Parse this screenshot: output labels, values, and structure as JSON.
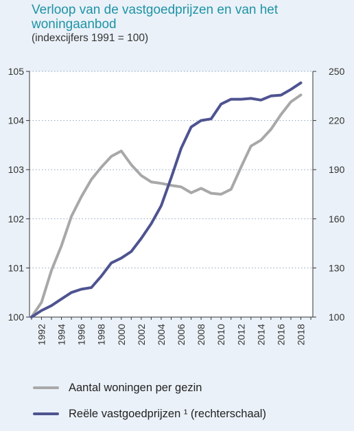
{
  "header": {
    "title": "Verloop van de vastgoedprijzen en van het woningaanbod",
    "subtitle": "(indexcijfers 1991 = 100)"
  },
  "chart_data": {
    "type": "line",
    "grid": true,
    "legend_position": "bottom-left",
    "xlim": [
      1990.8,
      2019.2
    ],
    "x_ticks": [
      1992,
      1994,
      1996,
      1998,
      2000,
      2002,
      2004,
      2006,
      2008,
      2010,
      2012,
      2014,
      2016,
      2018
    ],
    "y_left": {
      "ylim": [
        100,
        105
      ],
      "ticks": [
        100,
        101,
        102,
        103,
        104,
        105
      ]
    },
    "y_right": {
      "ylim": [
        100,
        250
      ],
      "ticks": [
        100,
        130,
        160,
        190,
        220,
        250
      ]
    },
    "series": [
      {
        "name": "Aantal woningen per gezin",
        "axis": "left",
        "color": "#a8a8a8",
        "x": [
          1991,
          1992,
          1993,
          1994,
          1995,
          1996,
          1997,
          1998,
          1999,
          2000,
          2001,
          2002,
          2003,
          2004,
          2005,
          2006,
          2007,
          2008,
          2009,
          2010,
          2011,
          2012,
          2013,
          2014,
          2015,
          2016,
          2017,
          2018
        ],
        "values": [
          100.0,
          100.3,
          100.95,
          101.45,
          102.05,
          102.45,
          102.8,
          103.05,
          103.27,
          103.38,
          103.1,
          102.88,
          102.75,
          102.72,
          102.68,
          102.65,
          102.53,
          102.62,
          102.52,
          102.5,
          102.6,
          103.05,
          103.48,
          103.6,
          103.82,
          104.12,
          104.38,
          104.52
        ]
      },
      {
        "name": "Reële vastgoedprijzen ¹ (rechterschaal)",
        "axis": "right",
        "color": "#4e5390",
        "x": [
          1991,
          1992,
          1993,
          1994,
          1995,
          1996,
          1997,
          1998,
          1999,
          2000,
          2001,
          2002,
          2003,
          2004,
          2005,
          2006,
          2007,
          2008,
          2009,
          2010,
          2011,
          2012,
          2013,
          2014,
          2015,
          2016,
          2017,
          2018
        ],
        "values": [
          100,
          104,
          107,
          111,
          115,
          117,
          118,
          125,
          133,
          136,
          140,
          148,
          157,
          168,
          185,
          203,
          216,
          220,
          221,
          230,
          233,
          233,
          233.5,
          232.5,
          235,
          235.5,
          239,
          243
        ]
      }
    ]
  }
}
